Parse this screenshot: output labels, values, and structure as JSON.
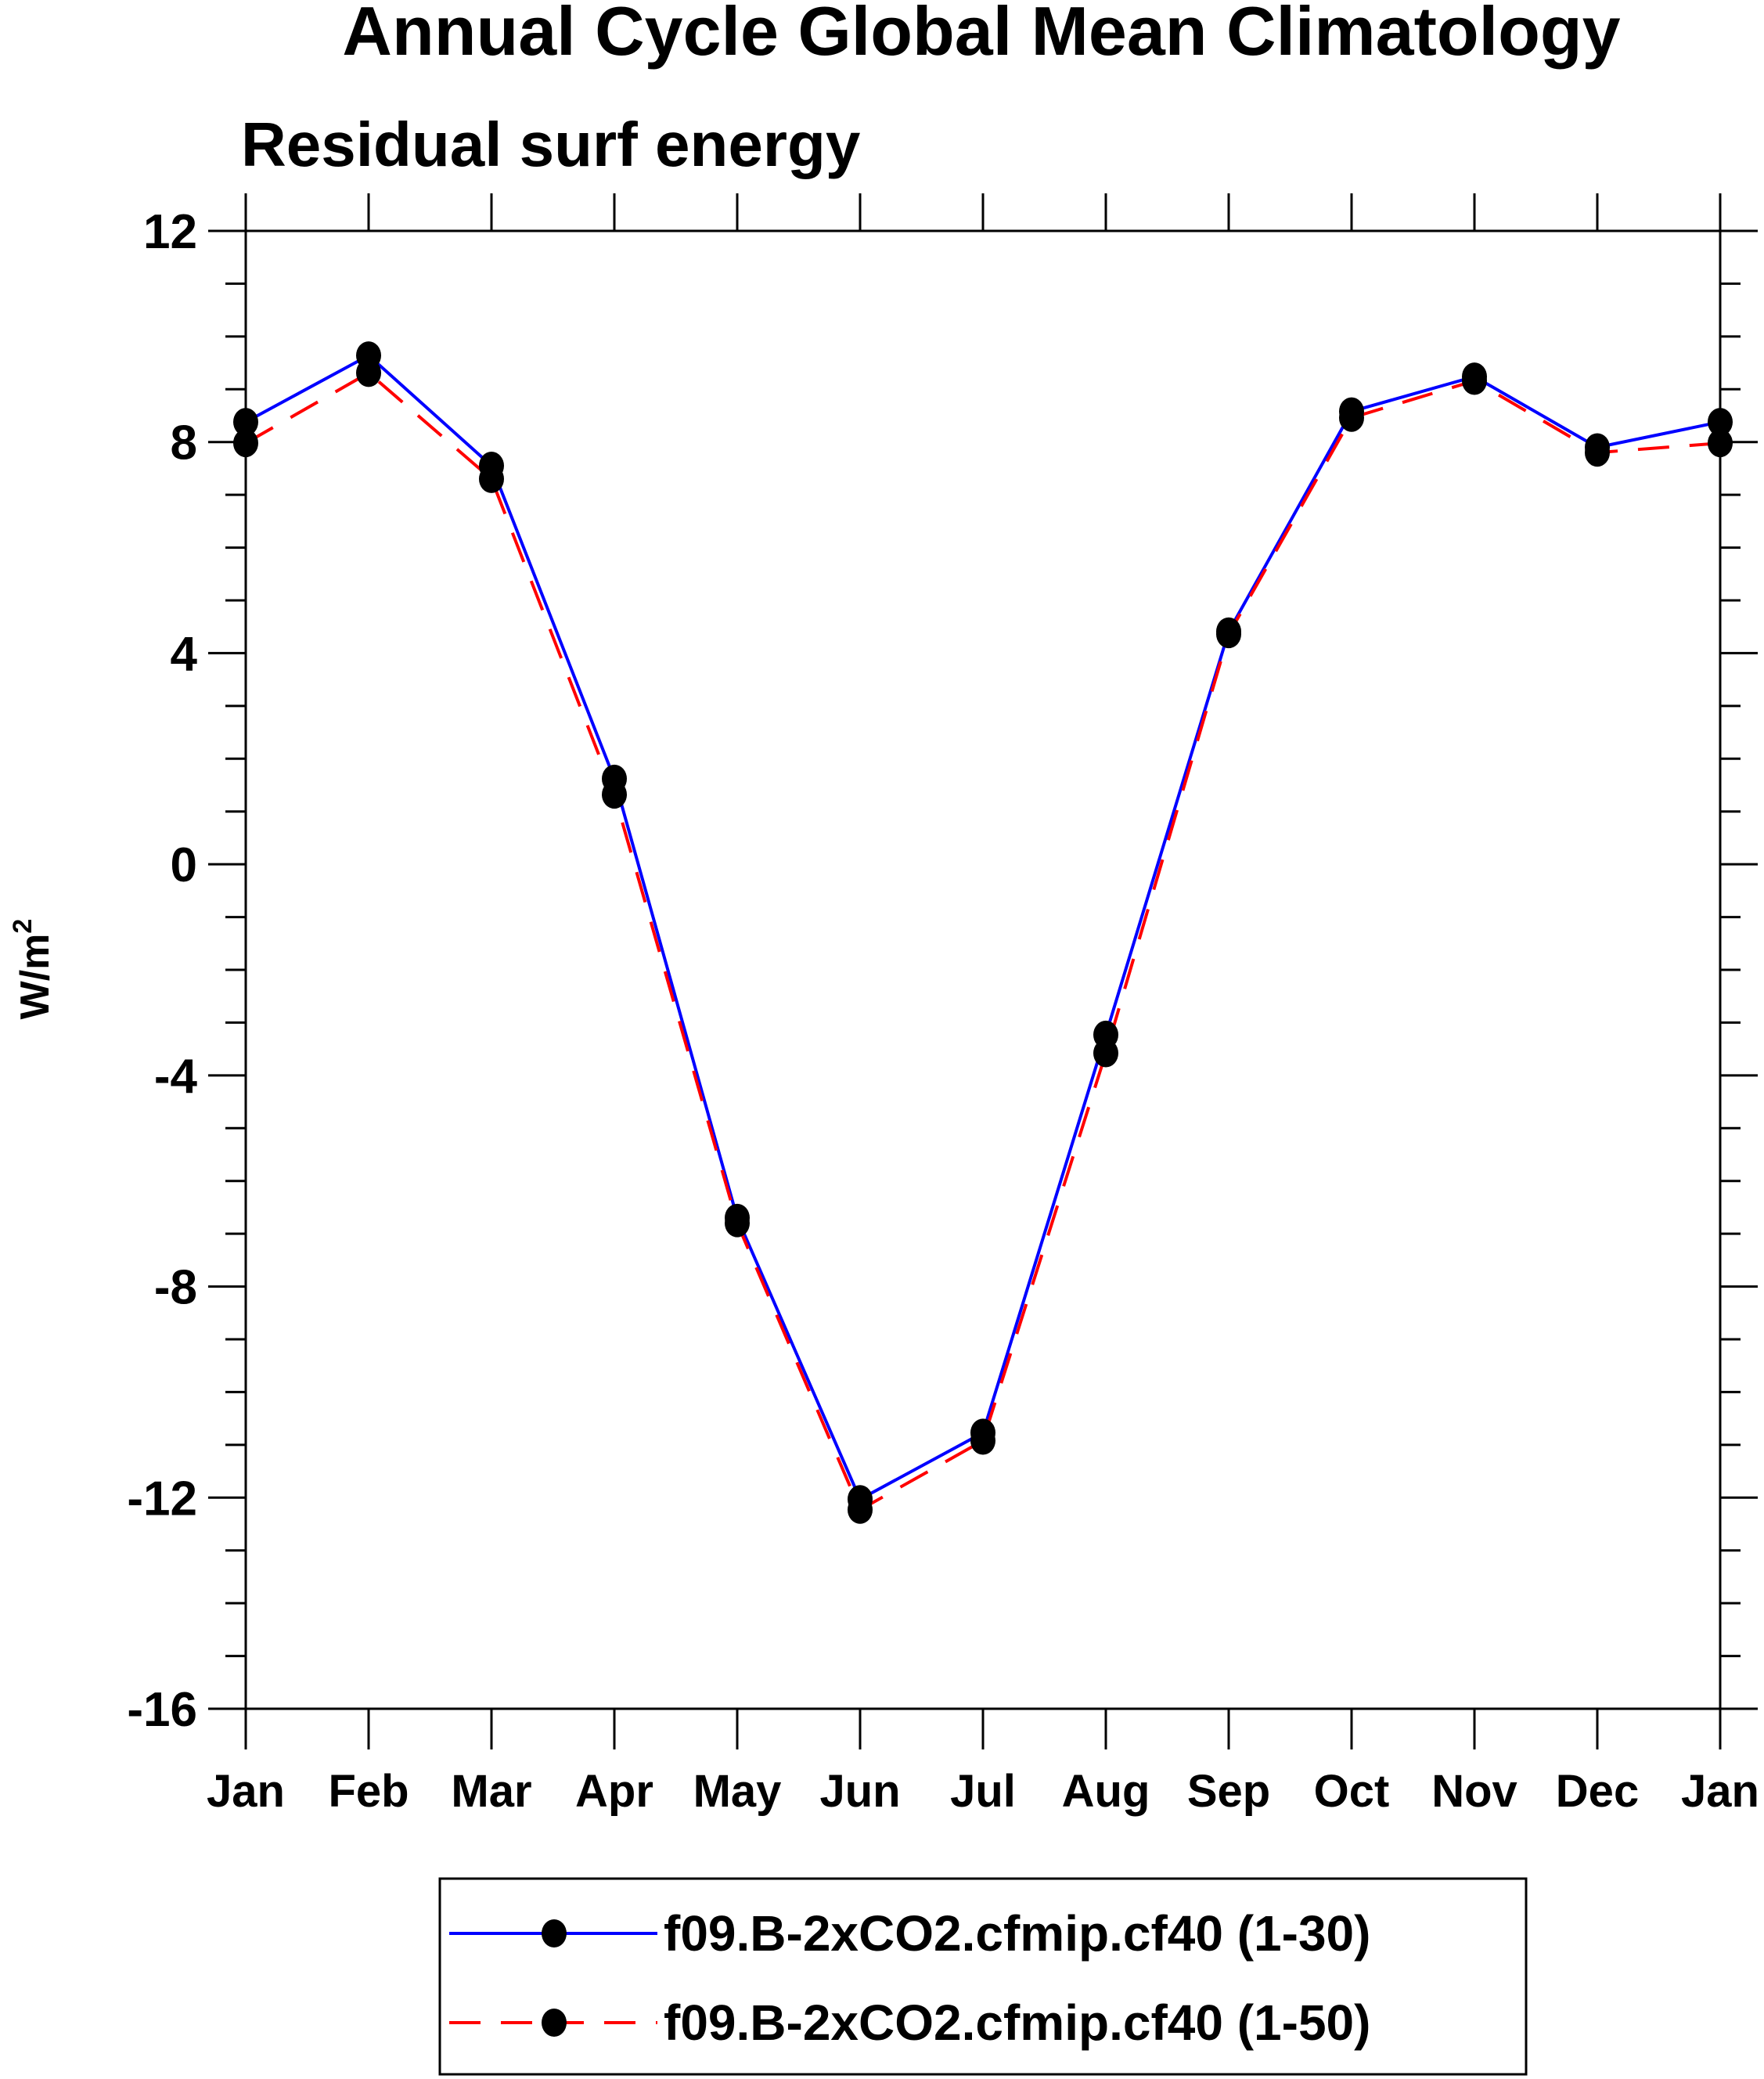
{
  "chart_data": {
    "type": "line",
    "title": "Annual Cycle Global Mean Climatology",
    "subtitle": "Residual surf energy",
    "xlabel": "",
    "ylabel": "W/m",
    "ylabel_superscript": "2",
    "categories": [
      "Jan",
      "Feb",
      "Mar",
      "Apr",
      "May",
      "Jun",
      "Jul",
      "Aug",
      "Sep",
      "Oct",
      "Nov",
      "Dec",
      "Jan"
    ],
    "ylim": [
      -16,
      12
    ],
    "yticks": [
      12,
      8,
      4,
      0,
      -4,
      -8,
      -12,
      -16
    ],
    "ytick_labels": [
      "12",
      "8",
      "4",
      "0",
      "-4",
      "-8",
      "-12",
      "-16"
    ],
    "grid": false,
    "legend_placement": "bottom",
    "series": [
      {
        "name": "f09.B-2xCO2.cfmip.cf40 (1-30)",
        "color": "#0000ff",
        "dash": "solid",
        "values": [
          8.38,
          9.64,
          7.55,
          1.62,
          -6.7,
          -12.03,
          -10.77,
          -3.23,
          4.41,
          8.58,
          9.24,
          7.9,
          8.38
        ]
      },
      {
        "name": "f09.B-2xCO2.cfmip.cf40 (1-50)",
        "color": "#ff0000",
        "dash": "dashed",
        "values": [
          7.98,
          9.31,
          7.3,
          1.32,
          -6.8,
          -12.23,
          -10.92,
          -3.58,
          4.36,
          8.46,
          9.16,
          7.8,
          7.98
        ]
      }
    ]
  }
}
